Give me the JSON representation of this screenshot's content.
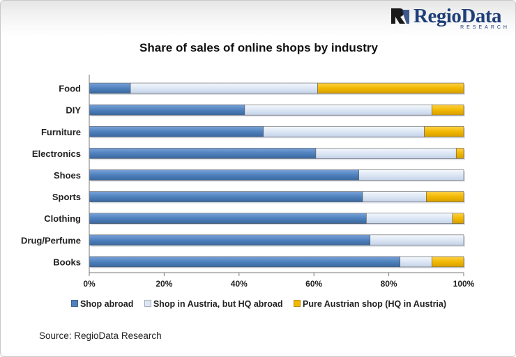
{
  "logo": {
    "brand_part1": "Regio",
    "brand_part2": "Data",
    "subtitle": "RESEARCH"
  },
  "source": "Source: RegioData Research",
  "colors": {
    "shop_abroad": "#4f81bd",
    "shop_austria_hq_abroad": "#dce6f4",
    "pure_austrian": "#f2b800",
    "header_band": "#ececec",
    "logo_blue": "#1f3f7a"
  },
  "chart_data": {
    "type": "bar",
    "orientation": "horizontal",
    "stacked": true,
    "title": "Share of sales of online shops by industry",
    "xlabel": "",
    "ylabel": "",
    "categories": [
      "Food",
      "DIY",
      "Furniture",
      "Electronics",
      "Shoes",
      "Sports",
      "Clothing",
      "Drug/Perfume",
      "Books"
    ],
    "series": [
      {
        "name": "Shop abroad",
        "values": [
          11,
          41.5,
          46.5,
          60.5,
          72,
          73,
          74,
          75,
          83
        ]
      },
      {
        "name": "Shop in Austria, but HQ abroad",
        "values": [
          50,
          50,
          43,
          37.5,
          28,
          17,
          23,
          25,
          8.5
        ]
      },
      {
        "name": "Pure Austrian shop (HQ in Austria)",
        "values": [
          39,
          8.5,
          10.5,
          2,
          0,
          10,
          3,
          0,
          8.5
        ]
      }
    ],
    "x_ticks": [
      "0%",
      "20%",
      "40%",
      "60%",
      "80%",
      "100%"
    ],
    "xlim": [
      0,
      100
    ],
    "grid": false,
    "legend_position": "bottom"
  }
}
